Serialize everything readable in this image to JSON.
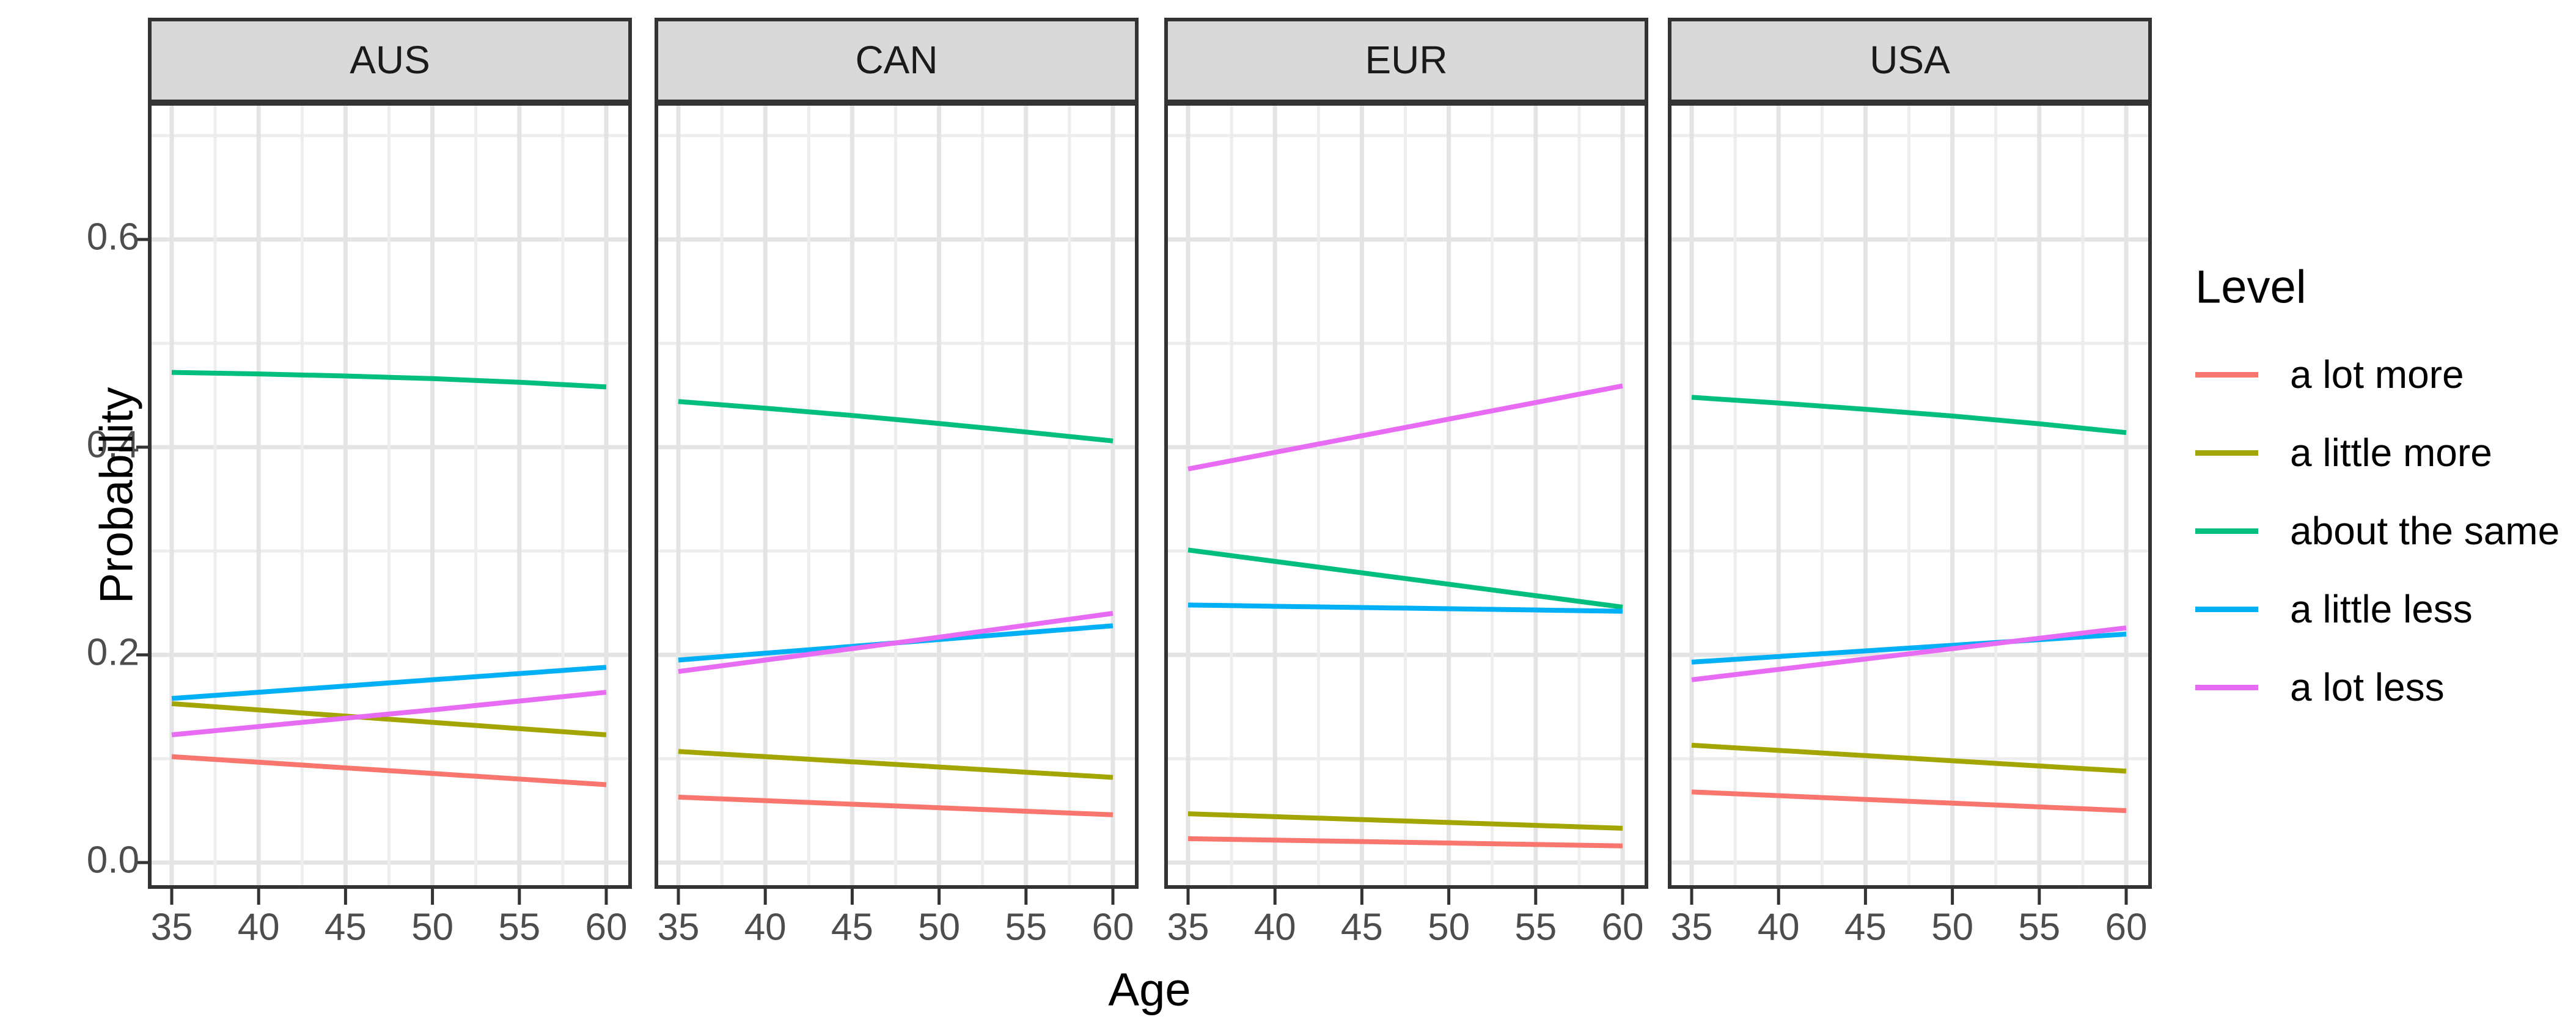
{
  "figure": {
    "background": "#FFFFFF"
  },
  "axis": {
    "x_title": "Age",
    "y_title": "Probability",
    "x_tick_labels": [
      "35",
      "40",
      "45",
      "50",
      "55",
      "60"
    ],
    "y_tick_labels": [
      "0.0",
      "0.2",
      "0.4",
      "0.6"
    ],
    "tick_text_color": "#4D4D4D"
  },
  "legend": {
    "title": "Level",
    "items": [
      {
        "label": "a lot more",
        "color": "#F8766D"
      },
      {
        "label": "a little more",
        "color": "#A3A500"
      },
      {
        "label": "about the same",
        "color": "#00BF7D"
      },
      {
        "label": "a little less",
        "color": "#00B0F6"
      },
      {
        "label": "a lot less",
        "color": "#E76BF3"
      }
    ],
    "position": "right"
  },
  "style": {
    "strip_background": "#D9D9D9",
    "strip_text_color": "#1A1A1A",
    "panel_border_color": "#333333",
    "grid_major_color": "#E4E4E4",
    "grid_minor_color": "#EDEDED",
    "tick_mark_color": "#333333"
  },
  "chart_data": {
    "type": "line",
    "title": "",
    "xlabel": "Age",
    "ylabel": "Probability",
    "x": [
      35,
      40,
      45,
      50,
      55,
      60
    ],
    "xlim": [
      33.7,
      61.4
    ],
    "ylim": [
      -0.024,
      0.731
    ],
    "x_major_ticks": [
      35,
      40,
      45,
      50,
      55,
      60
    ],
    "x_minor_ticks": [
      37.5,
      42.5,
      47.5,
      52.5,
      57.5
    ],
    "y_major_ticks": [
      0.0,
      0.2,
      0.4,
      0.6
    ],
    "y_minor_ticks": [
      0.1,
      0.3,
      0.5,
      0.7
    ],
    "grid": true,
    "legend_position": "right",
    "facets": [
      {
        "name": "AUS",
        "series": [
          {
            "name": "a lot more",
            "values": [
              0.102,
              0.0966,
              0.0912,
              0.0858,
              0.0804,
              0.075
            ]
          },
          {
            "name": "a little more",
            "values": [
              0.153,
              0.147,
              0.141,
              0.135,
              0.129,
              0.123
            ]
          },
          {
            "name": "about the same",
            "values": [
              0.472,
              0.4705,
              0.4685,
              0.466,
              0.4625,
              0.458
            ]
          },
          {
            "name": "a little less",
            "values": [
              0.158,
              0.164,
              0.17,
              0.176,
              0.182,
              0.188
            ]
          },
          {
            "name": "a lot less",
            "values": [
              0.123,
              0.131,
              0.139,
              0.147,
              0.1555,
              0.164
            ]
          }
        ]
      },
      {
        "name": "CAN",
        "series": [
          {
            "name": "a lot more",
            "values": [
              0.063,
              0.0596,
              0.0562,
              0.0528,
              0.0494,
              0.046
            ]
          },
          {
            "name": "a little more",
            "values": [
              0.107,
              0.102,
              0.097,
              0.092,
              0.087,
              0.082
            ]
          },
          {
            "name": "about the same",
            "values": [
              0.444,
              0.4375,
              0.4305,
              0.4228,
              0.4146,
              0.406
            ]
          },
          {
            "name": "a little less",
            "values": [
              0.195,
              0.2016,
              0.2082,
              0.2148,
              0.2214,
              0.228
            ]
          },
          {
            "name": "a lot less",
            "values": [
              0.184,
              0.195,
              0.206,
              0.217,
              0.2285,
              0.24
            ]
          }
        ]
      },
      {
        "name": "EUR",
        "series": [
          {
            "name": "a lot more",
            "values": [
              0.023,
              0.0216,
              0.0202,
              0.0188,
              0.0174,
              0.016
            ]
          },
          {
            "name": "a little more",
            "values": [
              0.047,
              0.0442,
              0.0414,
              0.0386,
              0.0358,
              0.033
            ]
          },
          {
            "name": "about the same",
            "values": [
              0.301,
              0.29,
              0.279,
              0.268,
              0.257,
              0.246
            ]
          },
          {
            "name": "a little less",
            "values": [
              0.248,
              0.2468,
              0.2456,
              0.2444,
              0.2432,
              0.242
            ]
          },
          {
            "name": "a lot less",
            "values": [
              0.379,
              0.395,
              0.411,
              0.427,
              0.443,
              0.459
            ]
          }
        ]
      },
      {
        "name": "USA",
        "series": [
          {
            "name": "a lot more",
            "values": [
              0.068,
              0.0644,
              0.0608,
              0.0572,
              0.0536,
              0.05
            ]
          },
          {
            "name": "a little more",
            "values": [
              0.113,
              0.108,
              0.103,
              0.098,
              0.093,
              0.088
            ]
          },
          {
            "name": "about the same",
            "values": [
              0.448,
              0.4425,
              0.4365,
              0.43,
              0.4225,
              0.414
            ]
          },
          {
            "name": "a little less",
            "values": [
              0.193,
              0.1984,
              0.2038,
              0.2092,
              0.2146,
              0.22
            ]
          },
          {
            "name": "a lot less",
            "values": [
              0.176,
              0.186,
              0.196,
              0.206,
              0.216,
              0.226
            ]
          }
        ]
      }
    ]
  }
}
